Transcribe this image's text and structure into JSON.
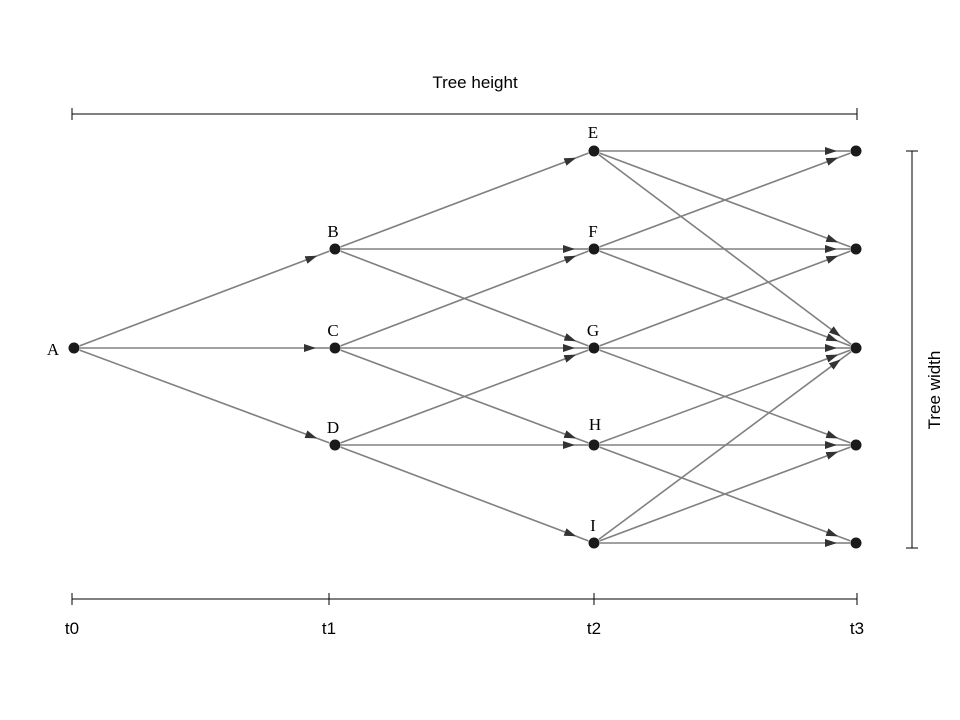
{
  "diagram": {
    "height_label": "Tree height",
    "width_label": "Tree width",
    "time_labels": [
      "t0",
      "t1",
      "t2",
      "t3"
    ],
    "node_labels": [
      "A",
      "B",
      "C",
      "D",
      "E",
      "F",
      "G",
      "H",
      "I"
    ],
    "colors": {
      "edge": "#808080",
      "node": "#1a1a1a",
      "axis": "#000000",
      "label": "#000000"
    }
  }
}
